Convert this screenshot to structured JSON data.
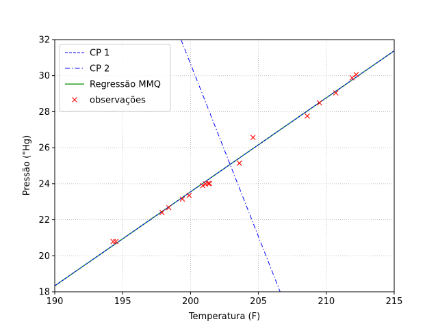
{
  "chart_data": {
    "type": "scatter",
    "xlabel": "Temperatura (F)",
    "ylabel": "Pressão (\"Hg)",
    "xlim": [
      190,
      215
    ],
    "ylim": [
      18,
      32
    ],
    "xticks": [
      190,
      195,
      200,
      205,
      210,
      215
    ],
    "yticks": [
      18,
      20,
      22,
      24,
      26,
      28,
      30,
      32
    ],
    "grid": true,
    "legend_position": "top-left",
    "series": [
      {
        "name": "CP 1",
        "kind": "line",
        "style": "dashed",
        "color": "#0000ff",
        "x": [
          190,
          215
        ],
        "y": [
          18.33,
          31.38
        ]
      },
      {
        "name": "CP 2",
        "kind": "line",
        "style": "dashdot",
        "color": "#0000ff",
        "x": [
          199.3,
          206.6
        ],
        "y": [
          32.0,
          18.0
        ]
      },
      {
        "name": "Regressão MMQ",
        "kind": "line",
        "style": "solid",
        "color": "#2ca02c",
        "x": [
          190,
          215
        ],
        "y": [
          18.33,
          31.38
        ]
      },
      {
        "name": "observações",
        "kind": "scatter",
        "marker": "x",
        "color": "#ff0000",
        "x": [
          194.3,
          194.5,
          197.9,
          198.4,
          199.4,
          199.9,
          200.9,
          201.1,
          201.3,
          201.4,
          203.6,
          204.6,
          208.6,
          209.5,
          210.7,
          211.9,
          212.2
        ],
        "y": [
          20.79,
          20.79,
          22.4,
          22.67,
          23.15,
          23.35,
          23.89,
          23.99,
          24.02,
          24.01,
          25.14,
          26.57,
          27.76,
          28.49,
          29.04,
          29.88,
          30.06
        ]
      }
    ]
  }
}
